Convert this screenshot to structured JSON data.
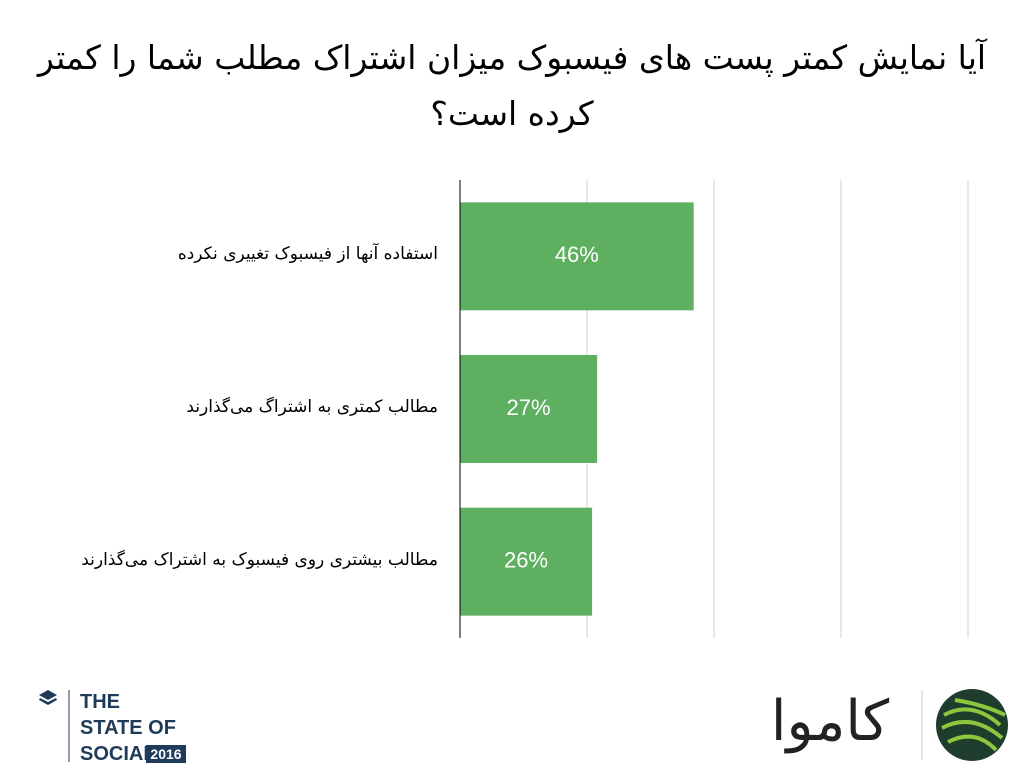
{
  "chart_data": {
    "type": "hbar",
    "title": "آیا نمایش کمتر پست های فیسبوک میزان اشتراک مطلب شما را کمتر کرده است؟",
    "categories": [
      "استفاده آنها از فیسبوک تغییری نکرده",
      "مطالب کمتری به اشتراگ می‌گذارند",
      "مطالب بیشتری روی فیسبوک به اشتراک می‌گذارند"
    ],
    "values": [
      46,
      27,
      26
    ],
    "value_labels": [
      "46%",
      "27%",
      "26%"
    ],
    "color": "#5eb060",
    "xlim": [
      0,
      100
    ],
    "xticks": [
      0,
      25,
      50,
      75,
      100
    ],
    "grid": true
  },
  "footer": {
    "brand_lines": [
      "THE",
      "STATE OF",
      "SOCIAL"
    ],
    "brand_year": "2016",
    "logo": "کاموا"
  }
}
